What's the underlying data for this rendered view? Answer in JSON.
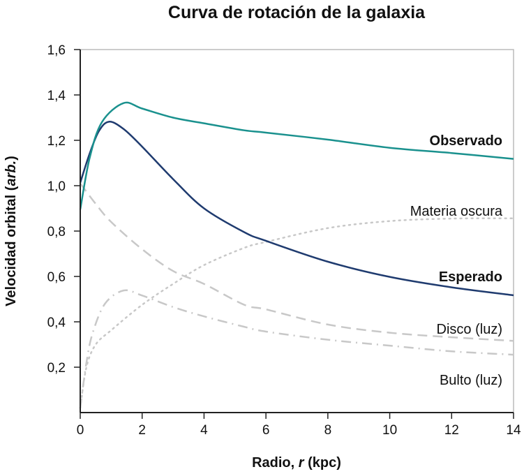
{
  "chart_data": {
    "type": "line",
    "title": "Curva de rotación de la galaxia",
    "xlabel": "Radio, r (kpc)",
    "xlabel_parts": [
      "Radio, ",
      "r",
      " (kpc)"
    ],
    "ylabel": "Velocidad orbital (arb.)",
    "ylabel_parts": [
      "Velocidad orbital (",
      "arb.",
      ")"
    ],
    "xlim": [
      0,
      14
    ],
    "ylim": [
      0,
      1.6
    ],
    "xticks": [
      0,
      2,
      4,
      6,
      8,
      10,
      12,
      14
    ],
    "xtick_labels": [
      "0",
      "2",
      "4",
      "6",
      "8",
      "10",
      "12",
      "14"
    ],
    "yticks": [
      0.2,
      0.4,
      0.6,
      0.8,
      1.0,
      1.2,
      1.4,
      1.6
    ],
    "ytick_labels": [
      "0,2",
      "0,4",
      "0,6",
      "0,8",
      "1,0",
      "1,2",
      "1,4",
      "1,6"
    ],
    "grid": false,
    "legend": "inline labels at right end of curves",
    "series": [
      {
        "name": "Observado",
        "color": "#1a918e",
        "style": "solid",
        "bold": true,
        "x": [
          0,
          0.3,
          0.7,
          1.4,
          2,
          3,
          4,
          5.3,
          6,
          8,
          10,
          12,
          14
        ],
        "y": [
          0.895,
          1.12,
          1.28,
          1.364,
          1.34,
          1.3,
          1.275,
          1.244,
          1.234,
          1.203,
          1.167,
          1.144,
          1.118
        ]
      },
      {
        "name": "Esperado",
        "color": "#1f3b6f",
        "style": "solid",
        "bold": true,
        "x": [
          0,
          0.3,
          0.6,
          0.93,
          1.4,
          2,
          3,
          4,
          5.3,
          6,
          8,
          10,
          12,
          14
        ],
        "y": [
          1.013,
          1.14,
          1.24,
          1.282,
          1.25,
          1.172,
          1.029,
          0.9,
          0.795,
          0.757,
          0.665,
          0.598,
          0.552,
          0.517
        ]
      },
      {
        "name": "Materia oscura",
        "color": "#c8c8c8",
        "style": "dotted",
        "bold": false,
        "x": [
          0,
          0.2,
          0.5,
          1,
          2,
          3,
          4,
          5.3,
          6,
          8,
          10,
          12,
          14
        ],
        "y": [
          0.02,
          0.2,
          0.3,
          0.363,
          0.475,
          0.567,
          0.65,
          0.726,
          0.752,
          0.813,
          0.844,
          0.855,
          0.856
        ]
      },
      {
        "name": "Disco (luz)",
        "color": "#c8c8c8",
        "style": "dashed",
        "bold": false,
        "x": [
          0,
          0.5,
          1,
          2,
          3,
          4,
          5.3,
          6,
          8,
          10,
          12,
          14
        ],
        "y": [
          1.01,
          0.92,
          0.84,
          0.72,
          0.624,
          0.567,
          0.475,
          0.455,
          0.388,
          0.352,
          0.332,
          0.316
        ]
      },
      {
        "name": "Bulto (luz)",
        "color": "#c8c8c8",
        "style": "dashdot",
        "bold": false,
        "x": [
          0,
          0.2,
          0.4,
          0.8,
          1.4,
          2,
          3,
          4,
          5.3,
          6,
          8,
          10,
          12,
          14
        ],
        "y": [
          0.02,
          0.22,
          0.35,
          0.48,
          0.538,
          0.516,
          0.465,
          0.424,
          0.378,
          0.357,
          0.321,
          0.295,
          0.27,
          0.255
        ]
      }
    ],
    "annotations": [
      {
        "text": "Observado",
        "x": 14,
        "y": 1.2
      },
      {
        "text": "Materia oscura",
        "x": 14,
        "y": 0.89
      },
      {
        "text": "Esperado",
        "x": 14,
        "y": 0.6
      },
      {
        "text": "Disco (luz)",
        "x": 14,
        "y": 0.37
      },
      {
        "text": "Bulto (luz)",
        "x": 14,
        "y": 0.145
      }
    ]
  }
}
